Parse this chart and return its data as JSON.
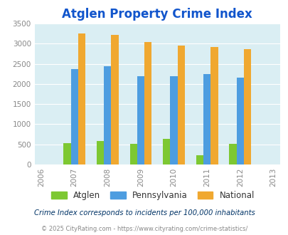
{
  "title": "Atglen Property Crime Index",
  "all_years": [
    2006,
    2007,
    2008,
    2009,
    2010,
    2011,
    2012,
    2013
  ],
  "data_years": [
    2007,
    2008,
    2009,
    2010,
    2011,
    2012
  ],
  "atglen": [
    530,
    580,
    510,
    640,
    230,
    510
  ],
  "pennsylvania": [
    2370,
    2440,
    2200,
    2185,
    2240,
    2155
  ],
  "national": [
    3250,
    3210,
    3040,
    2960,
    2910,
    2860
  ],
  "atglen_color": "#7dc832",
  "pennsylvania_color": "#4d9de0",
  "national_color": "#f0a830",
  "bg_color": "#daeef3",
  "ylim": [
    0,
    3500
  ],
  "yticks": [
    0,
    500,
    1000,
    1500,
    2000,
    2500,
    3000,
    3500
  ],
  "title_color": "#1155cc",
  "legend_labels": [
    "Atglen",
    "Pennsylvania",
    "National"
  ],
  "footnote1": "Crime Index corresponds to incidents per 100,000 inhabitants",
  "footnote2": "© 2025 CityRating.com - https://www.cityrating.com/crime-statistics/",
  "bar_width": 0.22,
  "title_fontsize": 12,
  "footnote1_color": "#003366",
  "footnote2_color": "#888888",
  "grid_color": "#ffffff",
  "tick_color": "#888888"
}
